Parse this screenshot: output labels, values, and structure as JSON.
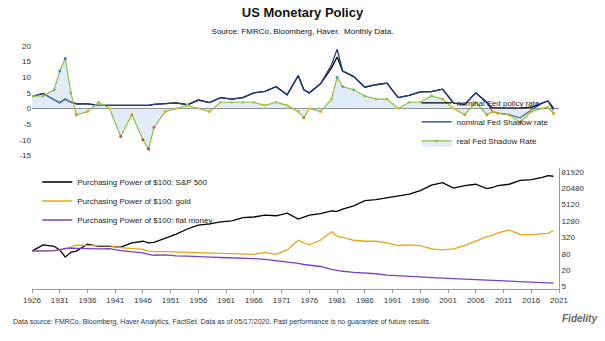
{
  "chart_data": [
    {
      "type": "line",
      "title": "US Monetary Policy",
      "subtitle": "Source: FMRCo, Bloomberg, Haver.  Monthly Data.",
      "annotations": [
        "Data source: FMRCo, Bloomberg, Haver Analytics, FactSet. Data as of 05/17/2020. Past performance is no guarantee of future results.",
        "Fidelity"
      ],
      "x": [
        1926,
        1928,
        1930,
        1931,
        1932,
        1933,
        1934,
        1936,
        1938,
        1940,
        1942,
        1944,
        1946,
        1947,
        1948,
        1950,
        1952,
        1954,
        1956,
        1958,
        1960,
        1962,
        1964,
        1966,
        1968,
        1970,
        1972,
        1974,
        1975,
        1976,
        1978,
        1980,
        1981,
        1982,
        1984,
        1986,
        1988,
        1990,
        1992,
        1994,
        1996,
        1998,
        2000,
        2002,
        2004,
        2006,
        2008,
        2009,
        2010,
        2012,
        2014,
        2016,
        2018,
        2019,
        2020
      ],
      "xlim": [
        1926,
        2021
      ],
      "xticks": [
        1926,
        1931,
        1936,
        1941,
        1946,
        1951,
        1956,
        1961,
        1966,
        1971,
        1976,
        1981,
        1986,
        1991,
        1996,
        2001,
        2006,
        2011,
        2016,
        2021
      ],
      "ylim": [
        -15,
        20
      ],
      "yticks": [
        -15,
        -10,
        -5,
        0,
        5,
        10,
        15,
        20
      ],
      "grid": false,
      "legend": "lower right",
      "tick_labels": "y",
      "series": [
        {
          "name": "nominal Fed policy rate",
          "color": "#000000",
          "values": [
            3.8,
            4.8,
            2.8,
            1.8,
            3,
            2,
            1.5,
            1.5,
            1,
            1,
            1,
            1,
            1,
            1,
            1.3,
            1.6,
            1.8,
            1.2,
            2.7,
            1.9,
            3.5,
            3,
            3.5,
            5,
            5.5,
            7,
            4.4,
            10.5,
            6,
            5,
            7.9,
            13,
            16.5,
            12,
            10.2,
            6.8,
            7.6,
            8.1,
            3.5,
            4.2,
            5.3,
            5.4,
            6.2,
            1.7,
            1.3,
            5,
            2,
            0.2,
            0.2,
            0.15,
            0.1,
            0.4,
            1.8,
            2.4,
            0.1
          ]
        },
        {
          "name": "nominal Fed Shadow rate",
          "color": "#1f3c88",
          "values": [
            3.8,
            4.8,
            2.8,
            1.8,
            3,
            2,
            1.5,
            1.5,
            1,
            1,
            1,
            1,
            1,
            1,
            1.3,
            1.6,
            1.8,
            1.2,
            2.7,
            1.9,
            3.5,
            3,
            3.5,
            5,
            5.5,
            7,
            4.4,
            10.5,
            6,
            5,
            7.9,
            14,
            19,
            12,
            10.2,
            6.8,
            7.6,
            8.1,
            3.5,
            4.2,
            5.3,
            5.4,
            6.2,
            1.7,
            1.3,
            5,
            2,
            -1,
            -1.5,
            -2,
            -3,
            -0.5,
            1.8,
            2.4,
            -0.5
          ]
        },
        {
          "name": "real Fed Shadow Rate",
          "color": "#8cbf3f",
          "marker": "circle",
          "values": [
            4,
            4,
            6,
            12,
            16,
            5,
            -2,
            -1,
            2,
            0,
            -9,
            -2,
            -10,
            -13,
            -6,
            -1,
            0,
            1,
            0,
            -1,
            2,
            2,
            2,
            2,
            1,
            2,
            1,
            -1,
            -3,
            0,
            -1,
            3,
            10,
            7,
            6,
            4,
            3,
            3,
            0,
            2,
            2,
            4,
            3,
            0,
            -2,
            2,
            -2,
            -1,
            -1.5,
            -2,
            -4.5,
            -1,
            0,
            0.5,
            -1.5
          ]
        }
      ]
    },
    {
      "type": "line",
      "x": [
        1926,
        1928,
        1930,
        1931,
        1932,
        1933,
        1934,
        1936,
        1938,
        1940,
        1942,
        1944,
        1946,
        1947,
        1948,
        1950,
        1952,
        1954,
        1956,
        1958,
        1960,
        1962,
        1964,
        1966,
        1968,
        1970,
        1972,
        1974,
        1975,
        1976,
        1978,
        1980,
        1981,
        1982,
        1984,
        1986,
        1988,
        1990,
        1992,
        1994,
        1996,
        1998,
        2000,
        2002,
        2004,
        2006,
        2008,
        2009,
        2010,
        2012,
        2014,
        2016,
        2018,
        2019,
        2020
      ],
      "xlim": [
        1926,
        2021
      ],
      "xticks": [
        1926,
        1931,
        1936,
        1941,
        1946,
        1951,
        1956,
        1961,
        1966,
        1971,
        1976,
        1981,
        1986,
        1991,
        1996,
        2001,
        2006,
        2011,
        2016,
        2021
      ],
      "ylim": [
        4,
        120000
      ],
      "yticks": [
        5,
        20,
        80,
        320,
        1280,
        5120,
        20480,
        81920
      ],
      "log": "y",
      "grid": false,
      "legend": "upper left",
      "series": [
        {
          "name": "Purchasing Power of $100: S&P 500",
          "color": "#000000",
          "values": [
            100,
            170,
            150,
            110,
            60,
            90,
            100,
            180,
            150,
            150,
            140,
            200,
            230,
            200,
            210,
            300,
            420,
            650,
            900,
            1000,
            1200,
            1300,
            1700,
            1800,
            2100,
            2000,
            2500,
            1500,
            1800,
            2100,
            2400,
            3000,
            2900,
            3500,
            4600,
            7200,
            7800,
            9000,
            11000,
            12500,
            17000,
            27000,
            33000,
            21000,
            26000,
            29000,
            20000,
            22000,
            26000,
            29000,
            40000,
            43000,
            52000,
            60000,
            57000
          ]
        },
        {
          "name": "Purchasing Power of $100: gold",
          "color": "#e8a317",
          "values": [
            100,
            100,
            103,
            110,
            120,
            140,
            165,
            160,
            160,
            155,
            135,
            125,
            115,
            100,
            95,
            95,
            90,
            90,
            87,
            85,
            83,
            82,
            80,
            76,
            90,
            75,
            110,
            250,
            200,
            170,
            250,
            520,
            350,
            320,
            250,
            230,
            230,
            200,
            160,
            170,
            160,
            120,
            110,
            120,
            160,
            230,
            340,
            380,
            470,
            600,
            400,
            400,
            420,
            450,
            560
          ]
        },
        {
          "name": "Purchasing Power of $100: fiat money",
          "color": "#7b3fc4",
          "values": [
            100,
            101,
            104,
            113,
            125,
            128,
            124,
            122,
            120,
            122,
            104,
            96,
            86,
            75,
            70,
            72,
            66,
            65,
            64,
            60,
            58,
            57,
            55,
            53,
            49,
            44,
            41,
            35,
            32,
            30,
            27,
            21,
            19,
            18,
            16.5,
            15.7,
            14.6,
            13,
            12.2,
            11.6,
            11,
            10.6,
            10,
            9.6,
            9.2,
            8.6,
            8.2,
            8.2,
            8,
            7.6,
            7.3,
            7.2,
            6.8,
            6.7,
            6.6
          ]
        }
      ]
    }
  ]
}
